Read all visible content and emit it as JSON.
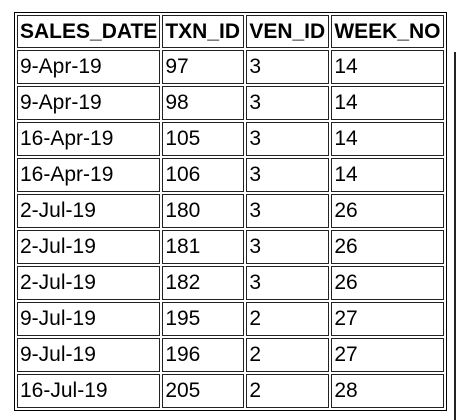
{
  "table": {
    "headers": [
      "SALES_DATE",
      "TXN_ID",
      "VEN_ID",
      "WEEK_NO"
    ],
    "rows": [
      [
        "9-Apr-19",
        "97",
        "3",
        "14"
      ],
      [
        "9-Apr-19",
        "98",
        "3",
        "14"
      ],
      [
        "16-Apr-19",
        "105",
        "3",
        "14"
      ],
      [
        "16-Apr-19",
        "106",
        "3",
        "14"
      ],
      [
        "2-Jul-19",
        "180",
        "3",
        "26"
      ],
      [
        "2-Jul-19",
        "181",
        "3",
        "26"
      ],
      [
        "2-Jul-19",
        "182",
        "3",
        "26"
      ],
      [
        "9-Jul-19",
        "195",
        "2",
        "27"
      ],
      [
        "9-Jul-19",
        "196",
        "2",
        "27"
      ],
      [
        "16-Jul-19",
        "205",
        "2",
        "28"
      ]
    ]
  }
}
